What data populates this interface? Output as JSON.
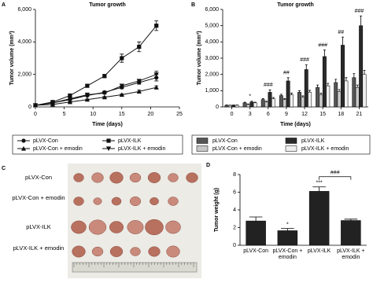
{
  "chart_data": [
    {
      "type": "line",
      "label": "A",
      "title": "Tumor growth",
      "x_label": "Time (days)",
      "y_label": "Tumor volume (mm³)",
      "x": [
        0,
        3,
        6,
        9,
        12,
        15,
        18,
        21
      ],
      "xlim": [
        0,
        25
      ],
      "xticks": [
        0,
        5,
        10,
        15,
        20,
        25
      ],
      "ylim": [
        0,
        6000
      ],
      "yticks": [
        0,
        {
          "value": 2000,
          "label": "2,000"
        },
        {
          "value": 4000,
          "label": "4,000"
        },
        {
          "value": 6000,
          "label": "6,000"
        }
      ],
      "series": [
        {
          "name": "pLVX-Con",
          "color": "#111",
          "marker": "circle",
          "values": [
            100,
            250,
            450,
            700,
            900,
            1200,
            1500,
            1800
          ],
          "errors": [
            20,
            30,
            40,
            50,
            60,
            80,
            100,
            200
          ]
        },
        {
          "name": "pLVX-Con + emodin",
          "color": "#111",
          "marker": "triangle-up",
          "values": [
            100,
            150,
            300,
            450,
            600,
            750,
            950,
            1200
          ],
          "errors": [
            10,
            20,
            30,
            40,
            40,
            50,
            80,
            100
          ]
        },
        {
          "name": "pLVX-ILK",
          "color": "#111",
          "marker": "square",
          "values": [
            100,
            300,
            700,
            1300,
            1900,
            3000,
            3700,
            5000
          ],
          "errors": [
            20,
            40,
            60,
            80,
            100,
            250,
            300,
            300
          ]
        },
        {
          "name": "pLVX-ILK + emodin",
          "color": "#111",
          "marker": "triangle-down",
          "values": [
            100,
            250,
            500,
            750,
            850,
            1300,
            1600,
            2000
          ],
          "errors": [
            20,
            30,
            40,
            50,
            60,
            80,
            100,
            200
          ]
        }
      ]
    },
    {
      "type": "bar",
      "label": "B",
      "title": "Tumor growth",
      "x_label": "Time (days)",
      "y_label": "Tumor volume (mm³)",
      "categories": [
        0,
        3,
        6,
        9,
        12,
        15,
        18,
        21
      ],
      "ylim": [
        0,
        6000
      ],
      "yticks": [
        0,
        {
          "value": 1000,
          "label": "1,000"
        },
        {
          "value": 2000,
          "label": "2,000"
        },
        {
          "value": 3000,
          "label": "3,000"
        },
        {
          "value": 4000,
          "label": "4,000"
        },
        {
          "value": 5000,
          "label": "5,000"
        },
        {
          "value": 6000,
          "label": "6,000"
        }
      ],
      "significance": [
        null,
        "*",
        "###",
        "##",
        "###",
        "###",
        "##",
        "###"
      ],
      "series": [
        {
          "name": "pLVX-Con",
          "color": "#555555",
          "values": [
            100,
            250,
            450,
            700,
            900,
            1200,
            1500,
            1800
          ],
          "errors": [
            20,
            40,
            60,
            80,
            100,
            150,
            200,
            250
          ]
        },
        {
          "name": "pLVX-Con + emodin",
          "color": "#c8c8c8",
          "values": [
            100,
            150,
            300,
            450,
            600,
            750,
            950,
            1200
          ],
          "errors": [
            10,
            30,
            50,
            60,
            80,
            100,
            120,
            150
          ]
        },
        {
          "name": "pLVX-ILK",
          "color": "#2a2a2a",
          "values": [
            100,
            300,
            900,
            1600,
            2300,
            3100,
            3800,
            5000
          ],
          "errors": [
            20,
            50,
            150,
            200,
            300,
            400,
            500,
            600
          ]
        },
        {
          "name": "pLVX-ILK + emodin",
          "color": "#efefef",
          "values": [
            100,
            250,
            500,
            750,
            900,
            1300,
            1600,
            2000
          ],
          "errors": [
            20,
            40,
            80,
            100,
            120,
            150,
            200,
            250
          ]
        }
      ]
    },
    {
      "type": "bar",
      "label": "D",
      "y_label": "Tumor weight (g)",
      "categories": [
        "pLVX-Con",
        "pLVX-Con + emodin",
        "pLVX-ILK",
        "pLVX-ILK + emodin"
      ],
      "values": [
        2.75,
        1.65,
        6.1,
        2.8
      ],
      "errors": [
        0.45,
        0.25,
        0.5,
        0.15
      ],
      "color": "#222222",
      "ylim": [
        0,
        8
      ],
      "yticks": [
        0,
        2,
        4,
        6,
        8
      ],
      "significance": [
        null,
        "*",
        "***",
        null
      ],
      "comparison_label": "###"
    }
  ],
  "photo": {
    "label": "C",
    "rows": [
      "pLVX-Con",
      "pLVX-Con + emodin",
      "pLVX-ILK",
      "pLVX-ILK + emodin"
    ]
  }
}
